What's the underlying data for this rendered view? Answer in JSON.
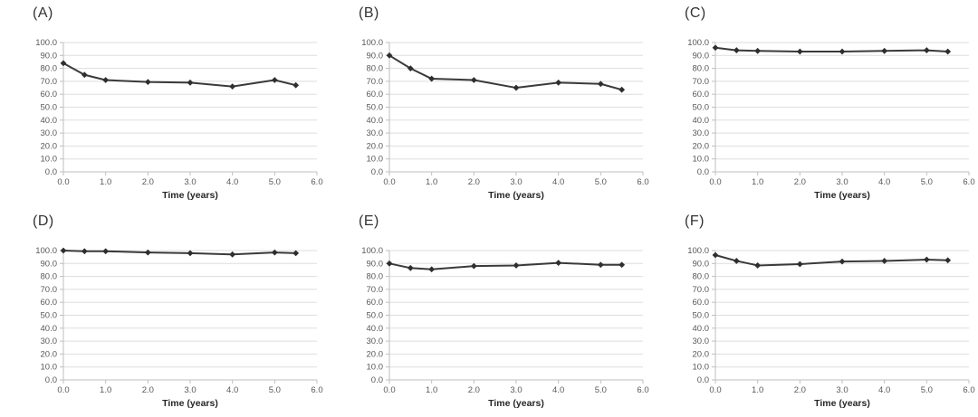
{
  "figure": {
    "background": "#ffffff",
    "rows": 2,
    "cols": 3
  },
  "style": {
    "line_color": "#3a3a3a",
    "marker_color": "#2e2e2e",
    "marker_shape": "diamond",
    "grid_color": "#dedede",
    "axis_color": "#bfbfbf",
    "tick_color": "#bfbfbf",
    "tick_label_color": "#595959",
    "xlabel_color": "#262626",
    "panel_label_color": "#333333"
  },
  "chart_data": [
    {
      "type": "line",
      "panel_label": "(A)",
      "xlabel": "Time (years)",
      "x": [
        0.0,
        0.5,
        1.0,
        2.0,
        3.0,
        4.0,
        5.0,
        5.5
      ],
      "values": [
        84.0,
        75.0,
        71.0,
        69.5,
        69.0,
        66.0,
        71.0,
        67.0
      ],
      "xlim": [
        0.0,
        6.0
      ],
      "ylim": [
        0.0,
        100.0
      ],
      "xtick_step": 1.0,
      "ytick_step": 10.0,
      "grid": true,
      "legend": "none"
    },
    {
      "type": "line",
      "panel_label": "(B)",
      "xlabel": "Time (years)",
      "x": [
        0.0,
        0.5,
        1.0,
        2.0,
        3.0,
        4.0,
        5.0,
        5.5
      ],
      "values": [
        90.0,
        80.0,
        72.0,
        71.0,
        65.0,
        69.0,
        68.0,
        63.5
      ],
      "xlim": [
        0.0,
        6.0
      ],
      "ylim": [
        0.0,
        100.0
      ],
      "xtick_step": 1.0,
      "ytick_step": 10.0,
      "grid": true,
      "legend": "none"
    },
    {
      "type": "line",
      "panel_label": "(C)",
      "xlabel": "Time (years)",
      "x": [
        0.0,
        0.5,
        1.0,
        2.0,
        3.0,
        4.0,
        5.0,
        5.5
      ],
      "values": [
        96.0,
        94.0,
        93.5,
        93.0,
        93.0,
        93.5,
        94.0,
        93.0
      ],
      "xlim": [
        0.0,
        6.0
      ],
      "ylim": [
        0.0,
        100.0
      ],
      "xtick_step": 1.0,
      "ytick_step": 10.0,
      "grid": true,
      "legend": "none"
    },
    {
      "type": "line",
      "panel_label": "(D)",
      "xlabel": "Time (years)",
      "x": [
        0.0,
        0.5,
        1.0,
        2.0,
        3.0,
        4.0,
        5.0,
        5.5
      ],
      "values": [
        100.0,
        99.5,
        99.5,
        98.5,
        98.0,
        97.0,
        98.5,
        98.0
      ],
      "xlim": [
        0.0,
        6.0
      ],
      "ylim": [
        0.0,
        100.0
      ],
      "xtick_step": 1.0,
      "ytick_step": 10.0,
      "grid": true,
      "legend": "none"
    },
    {
      "type": "line",
      "panel_label": "(E)",
      "xlabel": "Time (years)",
      "x": [
        0.0,
        0.5,
        1.0,
        2.0,
        3.0,
        4.0,
        5.0,
        5.5
      ],
      "values": [
        90.0,
        86.5,
        85.5,
        88.0,
        88.5,
        90.5,
        89.0,
        89.0
      ],
      "xlim": [
        0.0,
        6.0
      ],
      "ylim": [
        0.0,
        100.0
      ],
      "xtick_step": 1.0,
      "ytick_step": 10.0,
      "grid": true,
      "legend": "none"
    },
    {
      "type": "line",
      "panel_label": "(F)",
      "xlabel": "Time (years)",
      "x": [
        0.0,
        0.5,
        1.0,
        2.0,
        3.0,
        4.0,
        5.0,
        5.5
      ],
      "values": [
        96.5,
        92.0,
        88.5,
        89.5,
        91.5,
        92.0,
        93.0,
        92.5
      ],
      "xlim": [
        0.0,
        6.0
      ],
      "ylim": [
        0.0,
        100.0
      ],
      "xtick_step": 1.0,
      "ytick_step": 10.0,
      "grid": true,
      "legend": "none"
    }
  ]
}
